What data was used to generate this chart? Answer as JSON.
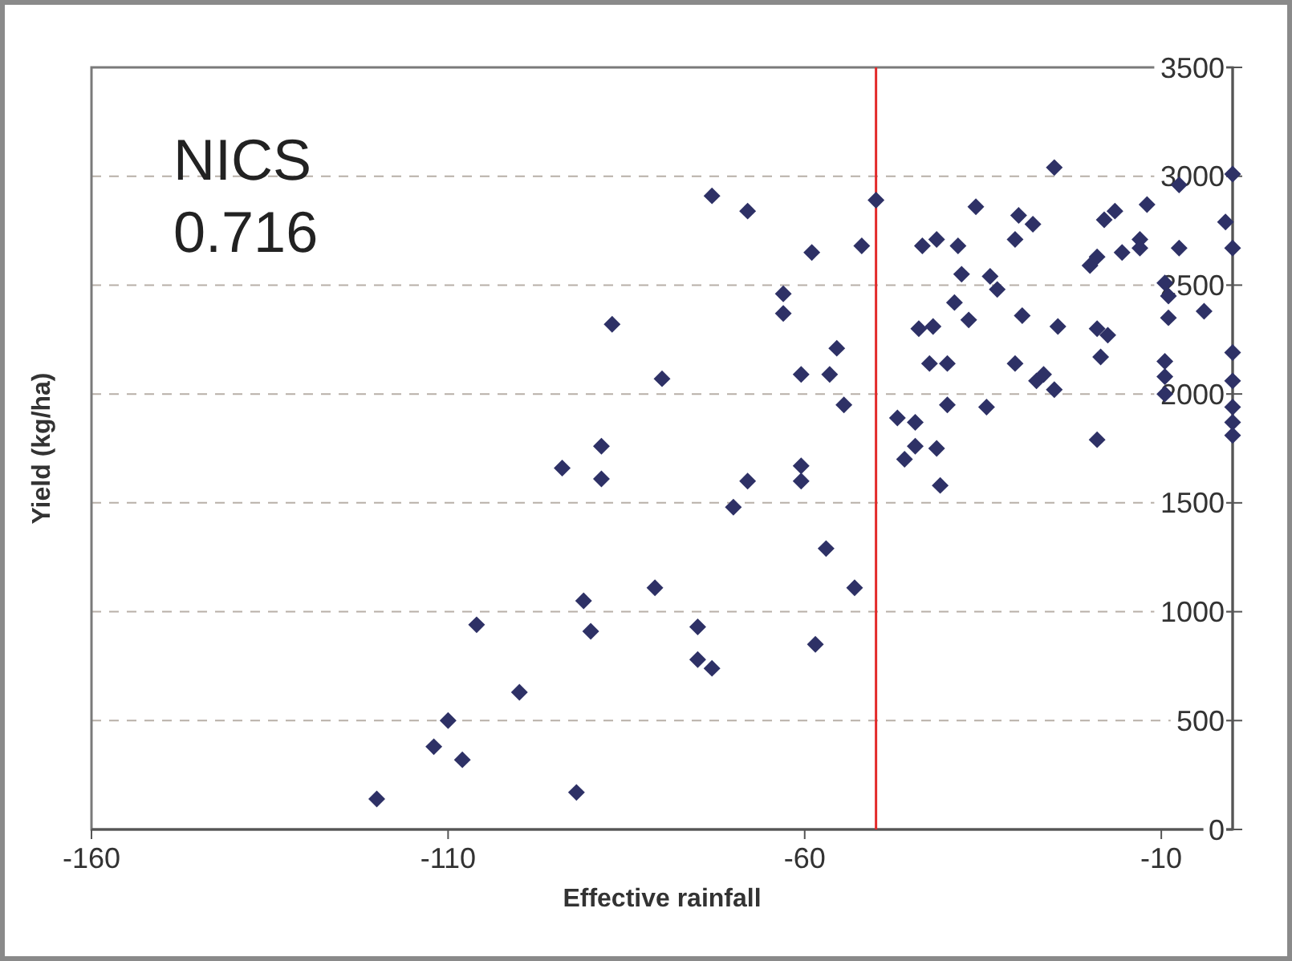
{
  "chart_data": {
    "type": "scatter",
    "xlabel": "Effective rainfall",
    "ylabel": "Yield (kg/ha)",
    "annotations": [
      "NICS",
      "0.716"
    ],
    "xlim": [
      -160,
      0
    ],
    "xticks": [
      -160,
      -110,
      -60,
      -10
    ],
    "ylim": [
      0,
      3500
    ],
    "yticks": [
      0,
      500,
      1000,
      1500,
      2000,
      2500,
      3000,
      3500
    ],
    "grid": "y",
    "marker": "diamond",
    "ref_lines": [
      {
        "axis": "x",
        "value": -50,
        "color": "#e32a2a"
      }
    ],
    "series": [
      {
        "color": "#2e3166",
        "x": [
          -120,
          -112,
          -110,
          -108,
          -106,
          -100,
          -94,
          -92,
          -91,
          -90,
          -88.5,
          -88.5,
          -87,
          -80,
          -81,
          -75,
          -75,
          -73,
          -73,
          -70,
          -68,
          -68,
          -63,
          -63,
          -59,
          -60.5,
          -56.5,
          -55.5,
          -54.5,
          -60.5,
          -60.5,
          -57,
          -58.5,
          -53,
          -52,
          -50,
          -47,
          -44.5,
          -44.5,
          -46,
          -41.5,
          -41,
          -44,
          -42,
          -42.5,
          -40,
          -40,
          -43.5,
          -41.5,
          -38.5,
          -38,
          -39,
          -37,
          -36,
          -34.5,
          -34,
          -33,
          -30.5,
          -30,
          -28,
          -29.5,
          -30.5,
          -27.5,
          -26.5,
          -25,
          -24.5,
          -25,
          -20,
          -19,
          -19,
          -17.5,
          -18.5,
          -19,
          -18,
          -16.5,
          -15.5,
          -13,
          -13,
          -12,
          -9.5,
          -9,
          -9,
          -9.5,
          -9.5,
          -9.5,
          -7.5,
          -7.5,
          -4,
          -1,
          0,
          0,
          0,
          0,
          0,
          0,
          0
        ],
        "values": [
          140,
          380,
          500,
          320,
          940,
          630,
          1660,
          170,
          1050,
          910,
          1760,
          1610,
          2320,
          2070,
          1110,
          930,
          780,
          740,
          2910,
          1480,
          1600,
          2840,
          2460,
          2370,
          2650,
          2090,
          2090,
          2210,
          1950,
          1670,
          1600,
          1290,
          850,
          1110,
          2680,
          2890,
          1890,
          1870,
          1760,
          1700,
          1750,
          1580,
          2300,
          2310,
          2140,
          2140,
          1950,
          2680,
          2710,
          2680,
          2550,
          2420,
          2340,
          2860,
          1940,
          2540,
          2480,
          2710,
          2820,
          2780,
          2360,
          2140,
          2060,
          2090,
          2020,
          2310,
          3040,
          2590,
          2630,
          2300,
          2270,
          2170,
          1790,
          2800,
          2840,
          2650,
          2710,
          2670,
          2870,
          2510,
          2450,
          2350,
          2150,
          2080,
          2000,
          2960,
          2670,
          2380,
          2790,
          3010,
          2670,
          2190,
          2060,
          1940,
          1870,
          1810
        ]
      }
    ]
  }
}
